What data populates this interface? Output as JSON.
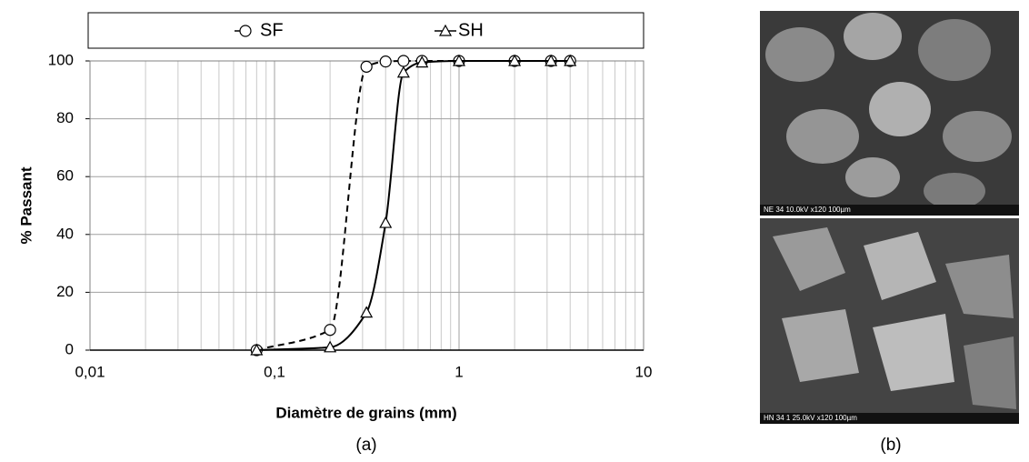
{
  "chart_data": {
    "type": "line",
    "ylabel": "% Passant",
    "xlabel": "Diamètre de grains (mm)",
    "x": [
      0.08,
      0.2,
      0.315,
      0.4,
      0.5,
      0.63,
      1,
      2,
      3.15,
      4
    ],
    "series": [
      {
        "name": "SF",
        "color": "#000000",
        "line_style": "dashed",
        "marker": "circle",
        "values": [
          0,
          7,
          98,
          99.8,
          100,
          100,
          100,
          100,
          100,
          100
        ]
      },
      {
        "name": "SH",
        "color": "#000000",
        "line_style": "solid",
        "marker": "triangle",
        "values": [
          0,
          1,
          13,
          44,
          96,
          99.5,
          100,
          100,
          100,
          100
        ]
      }
    ],
    "xscale": "log",
    "xlim": [
      0.01,
      10
    ],
    "xticks": [
      {
        "value": 0.01,
        "label": "0,01"
      },
      {
        "value": 0.1,
        "label": "0,1"
      },
      1,
      10
    ],
    "ylim": [
      0,
      100
    ],
    "yticks": [
      0,
      20,
      40,
      60,
      80,
      100
    ],
    "grid": true,
    "minor_grid": true,
    "legend": "top"
  },
  "figure": {
    "panel_a": "(a)",
    "panel_b": "(b)",
    "sem_images": [
      {
        "caption": "NE 34     10.0kV  x120   100µm"
      },
      {
        "caption": "HN 34 1  25.0kV  x120   100µm"
      }
    ]
  }
}
